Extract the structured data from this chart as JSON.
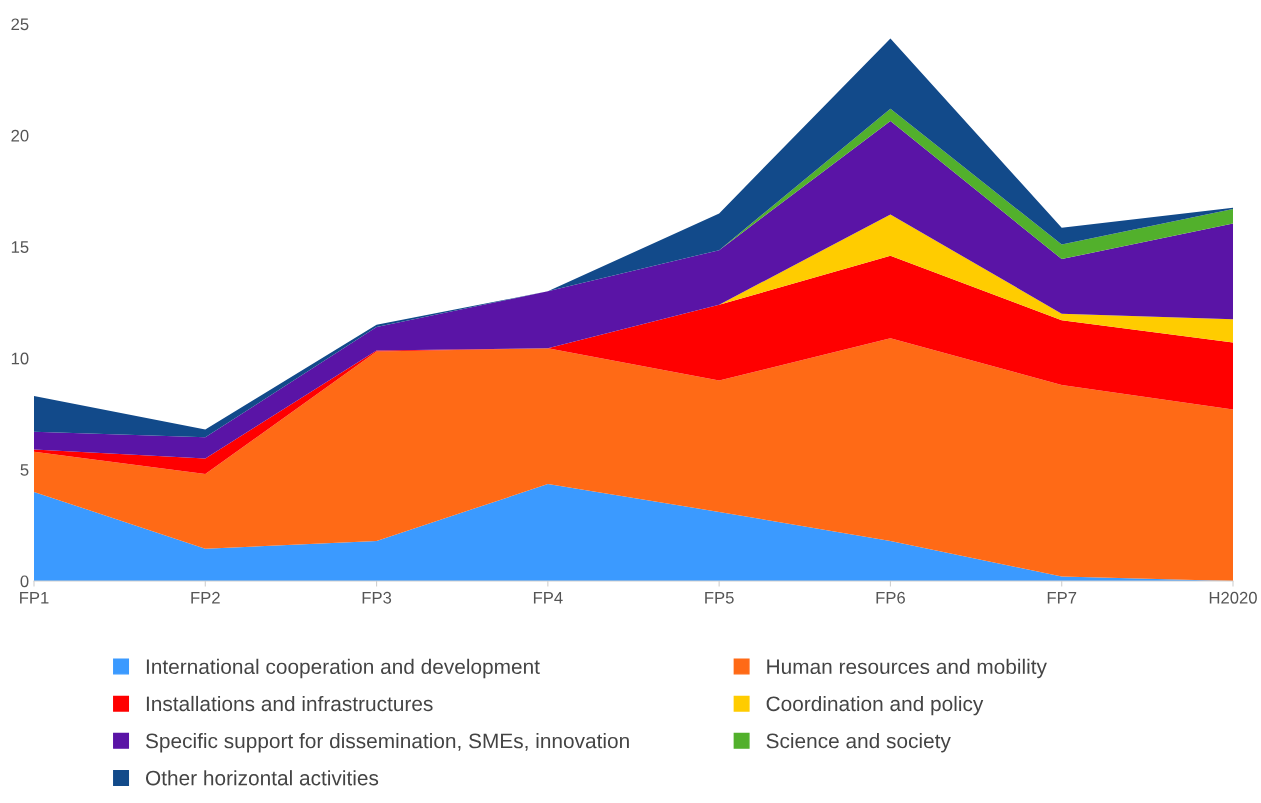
{
  "chart_data": {
    "type": "area",
    "stacked": true,
    "categories": [
      "FP1",
      "FP2",
      "FP3",
      "FP4",
      "FP5",
      "FP6",
      "FP7",
      "H2020"
    ],
    "series": [
      {
        "name": "International cooperation and development",
        "color": "#3b9aff",
        "values": [
          4.0,
          1.45,
          1.8,
          4.35,
          3.1,
          1.8,
          0.2,
          0.0
        ]
      },
      {
        "name": "Human resources and mobility",
        "color": "#ff6a16",
        "values": [
          1.8,
          3.35,
          8.5,
          6.1,
          5.9,
          9.1,
          8.6,
          7.7
        ]
      },
      {
        "name": "Installations and infrastructures",
        "color": "#ff0000",
        "values": [
          0.1,
          0.7,
          0.05,
          0.0,
          3.4,
          3.7,
          2.9,
          3.0
        ]
      },
      {
        "name": "Coordination and policy",
        "color": "#ffcc00",
        "values": [
          0.0,
          0.0,
          0.0,
          0.0,
          0.0,
          1.85,
          0.3,
          1.05
        ]
      },
      {
        "name": "Specific support for dissemination, SMEs, innovation",
        "color": "#5a14a6",
        "values": [
          0.8,
          0.95,
          1.05,
          2.55,
          2.45,
          4.2,
          2.45,
          4.3
        ]
      },
      {
        "name": "Science and society",
        "color": "#52b02c",
        "values": [
          0.0,
          0.0,
          0.0,
          0.0,
          0.0,
          0.55,
          0.65,
          0.65
        ]
      },
      {
        "name": "Other horizontal activities",
        "color": "#124a8a",
        "values": [
          1.6,
          0.35,
          0.1,
          0.0,
          1.65,
          3.15,
          0.75,
          0.05
        ]
      }
    ],
    "ylim": [
      0,
      25
    ],
    "yticks": [
      0,
      5,
      10,
      15,
      20,
      25
    ],
    "grid": false,
    "legend": "bottom"
  }
}
